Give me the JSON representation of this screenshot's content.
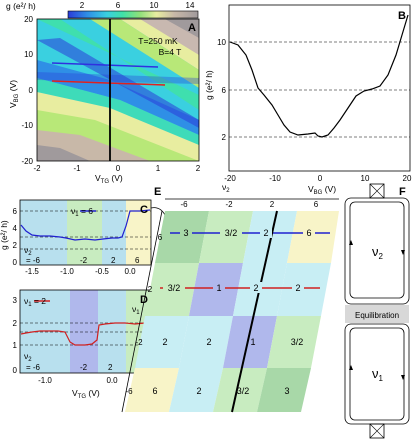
{
  "colorbar": {
    "label": "g (e²/ h)",
    "ticks": [
      "2",
      "6",
      "10",
      "14"
    ],
    "colors": [
      "#2a3cd8",
      "#2f8fe6",
      "#3ad0e0",
      "#40e0a8",
      "#6ee070",
      "#b8e878",
      "#e8eda0",
      "#d8c8a8",
      "#b8a8a8",
      "#a09a9c"
    ]
  },
  "panelA": {
    "letter": "A",
    "annotation_T": "T=250 mK",
    "annotation_B": "B=4 T",
    "yticks": [
      "20",
      "10",
      "0",
      "-10",
      "-20"
    ],
    "xticks": [
      "-2",
      "-1",
      "0",
      "1",
      "2"
    ],
    "ylabel": "V",
    "ylabel_sub": "BG",
    "ylabel_unit": " (V)",
    "xlabel": "V",
    "xlabel_sub": "TG",
    "xlabel_unit": " (V)"
  },
  "panelB": {
    "letter": "B",
    "yticks": [
      "10",
      "6",
      "2"
    ],
    "xticks": [
      "-20",
      "-10",
      "0",
      "10",
      "20"
    ],
    "ylabel": "g (e²/ h)",
    "xlabel": "V",
    "xlabel_sub": "BG",
    "xlabel_unit": " (V)"
  },
  "panelC": {
    "letter": "C",
    "legend": "ν",
    "legend_sub": "1",
    "legend_val": " = 6",
    "yticks": [
      "6",
      "4",
      "2",
      "0"
    ],
    "ylabel": "g (e²/ h)",
    "xticks": [
      "-1.5",
      "-1.0",
      "-0.5",
      "0.0"
    ],
    "nu_prefix": "ν",
    "nu_sub": "2",
    "nu_values": [
      "= -6",
      "-2",
      "2",
      "6"
    ]
  },
  "panelD": {
    "letter": "D",
    "legend": "ν",
    "legend_sub": "1",
    "legend_val": " = 2",
    "yticks": [
      "3",
      "2",
      "1",
      "0"
    ],
    "xticks": [
      "-1.0",
      "0.0"
    ],
    "xlabel": "V",
    "xlabel_sub": "TG",
    "xlabel_unit": " (V)",
    "nu_prefix": "ν",
    "nu_sub": "2",
    "nu_values": [
      "= -6",
      "-2",
      "2",
      "6"
    ]
  },
  "panelE": {
    "letter": "E",
    "top_label": "ν",
    "top_label_sub": "2",
    "top_values": [
      "-6",
      "-2",
      "2",
      "6"
    ],
    "side_label": "ν",
    "side_label_sub": "1",
    "side_values": [
      "6",
      "2",
      "-2",
      "-6"
    ],
    "rows": [
      [
        "3",
        "3/2",
        "2",
        "6"
      ],
      [
        "3/2",
        "1",
        "2",
        "2"
      ],
      [
        "2",
        "2",
        "1",
        "3/2"
      ],
      [
        "6",
        "2",
        "3/2",
        "3"
      ]
    ]
  },
  "panelF": {
    "letter": "F",
    "nu_top": "ν",
    "nu_top_sub": "2",
    "nu_bottom": "ν",
    "nu_bottom_sub": "1",
    "equilibration": "Equilibration"
  }
}
